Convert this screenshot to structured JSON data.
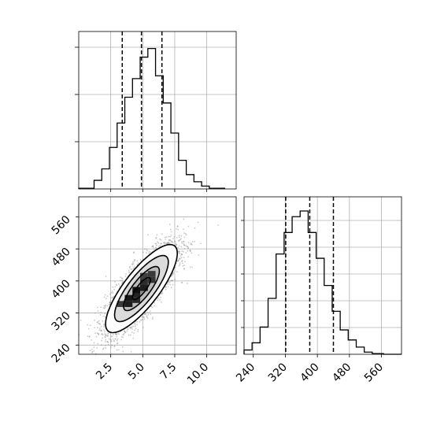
{
  "chart_data": {
    "type": "corner",
    "grid": true,
    "params": [
      {
        "x_ticks": [
          "2.5",
          "5.0",
          "7.5",
          "10.0"
        ],
        "x_tick_values": [
          2.5,
          5.0,
          7.5,
          10.0
        ],
        "range": [
          0.0,
          12.3
        ],
        "quantiles": [
          3.4,
          4.9,
          6.5
        ],
        "hist": {
          "edges": [
            0.0,
            1.2,
            1.8,
            2.4,
            3.0,
            3.6,
            4.2,
            4.8,
            5.4,
            6.0,
            6.6,
            7.2,
            7.8,
            8.4,
            9.0,
            9.6,
            10.2,
            11.4
          ],
          "counts": [
            0.005,
            0.06,
            0.14,
            0.29,
            0.46,
            0.64,
            0.77,
            0.92,
            0.98,
            0.79,
            0.6,
            0.39,
            0.2,
            0.1,
            0.05,
            0.02,
            0.005
          ]
        }
      },
      {
        "x_ticks": [
          "240",
          "320",
          "400",
          "480",
          "560"
        ],
        "x_tick_values": [
          240,
          320,
          400,
          480,
          560
        ],
        "y_ticks": [
          "240",
          "320",
          "400",
          "480",
          "560"
        ],
        "y_tick_values": [
          240,
          320,
          400,
          480,
          560
        ],
        "range": [
          217,
          610
        ],
        "quantiles": [
          321,
          381,
          440
        ],
        "hist": {
          "edges": [
            217,
            237,
            257,
            277,
            297,
            317,
            337,
            357,
            377,
            397,
            417,
            437,
            457,
            477,
            497,
            517,
            537,
            565,
            610
          ],
          "counts": [
            0.03,
            0.08,
            0.19,
            0.39,
            0.7,
            0.85,
            0.96,
            1.0,
            0.85,
            0.67,
            0.48,
            0.3,
            0.17,
            0.1,
            0.05,
            0.015,
            0.005,
            0.0
          ]
        }
      }
    ],
    "joint": {
      "center": [
        4.9,
        381
      ],
      "sd": [
        1.4,
        55
      ],
      "correlation": 0.8,
      "n_points": 3500,
      "contour_levels_sigma": [
        0.5,
        1.0,
        1.5,
        2.0
      ],
      "pixel_cells": [
        [
          3.0,
          335,
          0.55
        ],
        [
          3.6,
          335,
          0.85
        ],
        [
          4.2,
          345,
          0.75
        ],
        [
          3.6,
          350,
          0.9
        ],
        [
          4.2,
          360,
          0.8
        ],
        [
          4.2,
          370,
          1.0
        ],
        [
          4.8,
          375,
          0.85
        ],
        [
          4.8,
          390,
          0.7
        ],
        [
          5.4,
          395,
          0.6
        ],
        [
          5.4,
          410,
          0.55
        ],
        [
          4.8,
          405,
          0.5
        ]
      ]
    }
  }
}
